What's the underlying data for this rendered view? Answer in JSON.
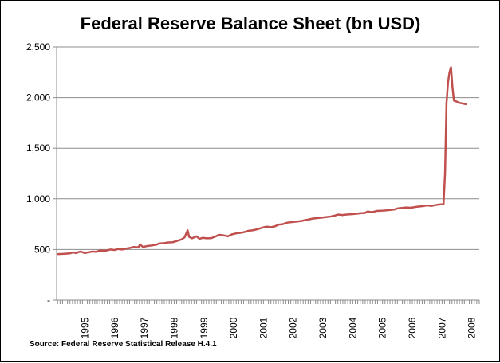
{
  "chart_data": {
    "type": "line",
    "title": "Federal Reserve Balance Sheet (bn USD)",
    "xlabel": "",
    "ylabel": "",
    "source": "Source: Federal Reserve Statistical Release H.4.1",
    "ylim": [
      0,
      2500
    ],
    "y_ticks": [
      {
        "value": 0,
        "label": "-"
      },
      {
        "value": 500,
        "label": "500"
      },
      {
        "value": 1000,
        "label": "1,000"
      },
      {
        "value": 1500,
        "label": "1,500"
      },
      {
        "value": 2000,
        "label": "2,000"
      },
      {
        "value": 2500,
        "label": "2,500"
      }
    ],
    "x_range": [
      1994.55,
      2008.75
    ],
    "x_ticks": [
      "1995",
      "1996",
      "1997",
      "1998",
      "1999",
      "2000",
      "2001",
      "2002",
      "2003",
      "2004",
      "2005",
      "2006",
      "2007",
      "2008"
    ],
    "grid": "horizontal",
    "legend": "none",
    "series_color": "#C0504D",
    "series": [
      {
        "x": [
          1994.6,
          1994.75,
          1994.9,
          1995.0,
          1995.1,
          1995.2,
          1995.35,
          1995.5,
          1995.6,
          1995.75,
          1995.9,
          1996.0,
          1996.2,
          1996.35,
          1996.5,
          1996.6,
          1996.75,
          1996.9,
          1997.0,
          1997.15,
          1997.3,
          1997.35,
          1997.45,
          1997.6,
          1997.75,
          1997.9,
          1998.0,
          1998.15,
          1998.3,
          1998.45,
          1998.6,
          1998.75,
          1998.85,
          1998.95,
          1999.0,
          1999.1,
          1999.25,
          1999.35,
          1999.45,
          1999.6,
          1999.75,
          1999.9,
          2000.0,
          2000.15,
          2000.3,
          2000.45,
          2000.6,
          2000.75,
          2000.9,
          2001.0,
          2001.15,
          2001.3,
          2001.45,
          2001.6,
          2001.75,
          2001.9,
          2002.0,
          2002.15,
          2002.3,
          2002.45,
          2002.6,
          2002.75,
          2002.9,
          2003.0,
          2003.15,
          2003.3,
          2003.45,
          2003.6,
          2003.75,
          2003.9,
          2004.0,
          2004.15,
          2004.3,
          2004.45,
          2004.6,
          2004.75,
          2004.9,
          2005.0,
          2005.15,
          2005.3,
          2005.45,
          2005.6,
          2005.75,
          2005.9,
          2006.0,
          2006.15,
          2006.3,
          2006.45,
          2006.6,
          2006.75,
          2006.9,
          2007.0,
          2007.15,
          2007.3,
          2007.45,
          2007.55,
          2007.6,
          2007.65,
          2007.7,
          2007.75,
          2007.8,
          2007.85,
          2007.9,
          2008.0,
          2008.05,
          2008.15,
          2008.3
        ],
        "values": [
          455,
          457,
          460,
          462,
          472,
          465,
          480,
          465,
          472,
          480,
          478,
          490,
          488,
          500,
          495,
          505,
          500,
          510,
          515,
          525,
          522,
          550,
          525,
          535,
          540,
          548,
          560,
          562,
          570,
          572,
          585,
          600,
          620,
          690,
          625,
          610,
          630,
          605,
          615,
          610,
          612,
          630,
          645,
          640,
          630,
          650,
          660,
          665,
          675,
          685,
          690,
          700,
          715,
          725,
          720,
          730,
          745,
          750,
          765,
          770,
          775,
          780,
          790,
          795,
          805,
          810,
          815,
          820,
          825,
          835,
          845,
          840,
          845,
          848,
          852,
          858,
          860,
          875,
          868,
          880,
          882,
          885,
          890,
          895,
          905,
          910,
          915,
          912,
          920,
          925,
          930,
          935,
          930,
          940,
          945,
          950,
          1250,
          1950,
          2150,
          2250,
          2300,
          2100,
          1970,
          1960,
          1950,
          1945,
          1935
        ]
      }
    ]
  }
}
